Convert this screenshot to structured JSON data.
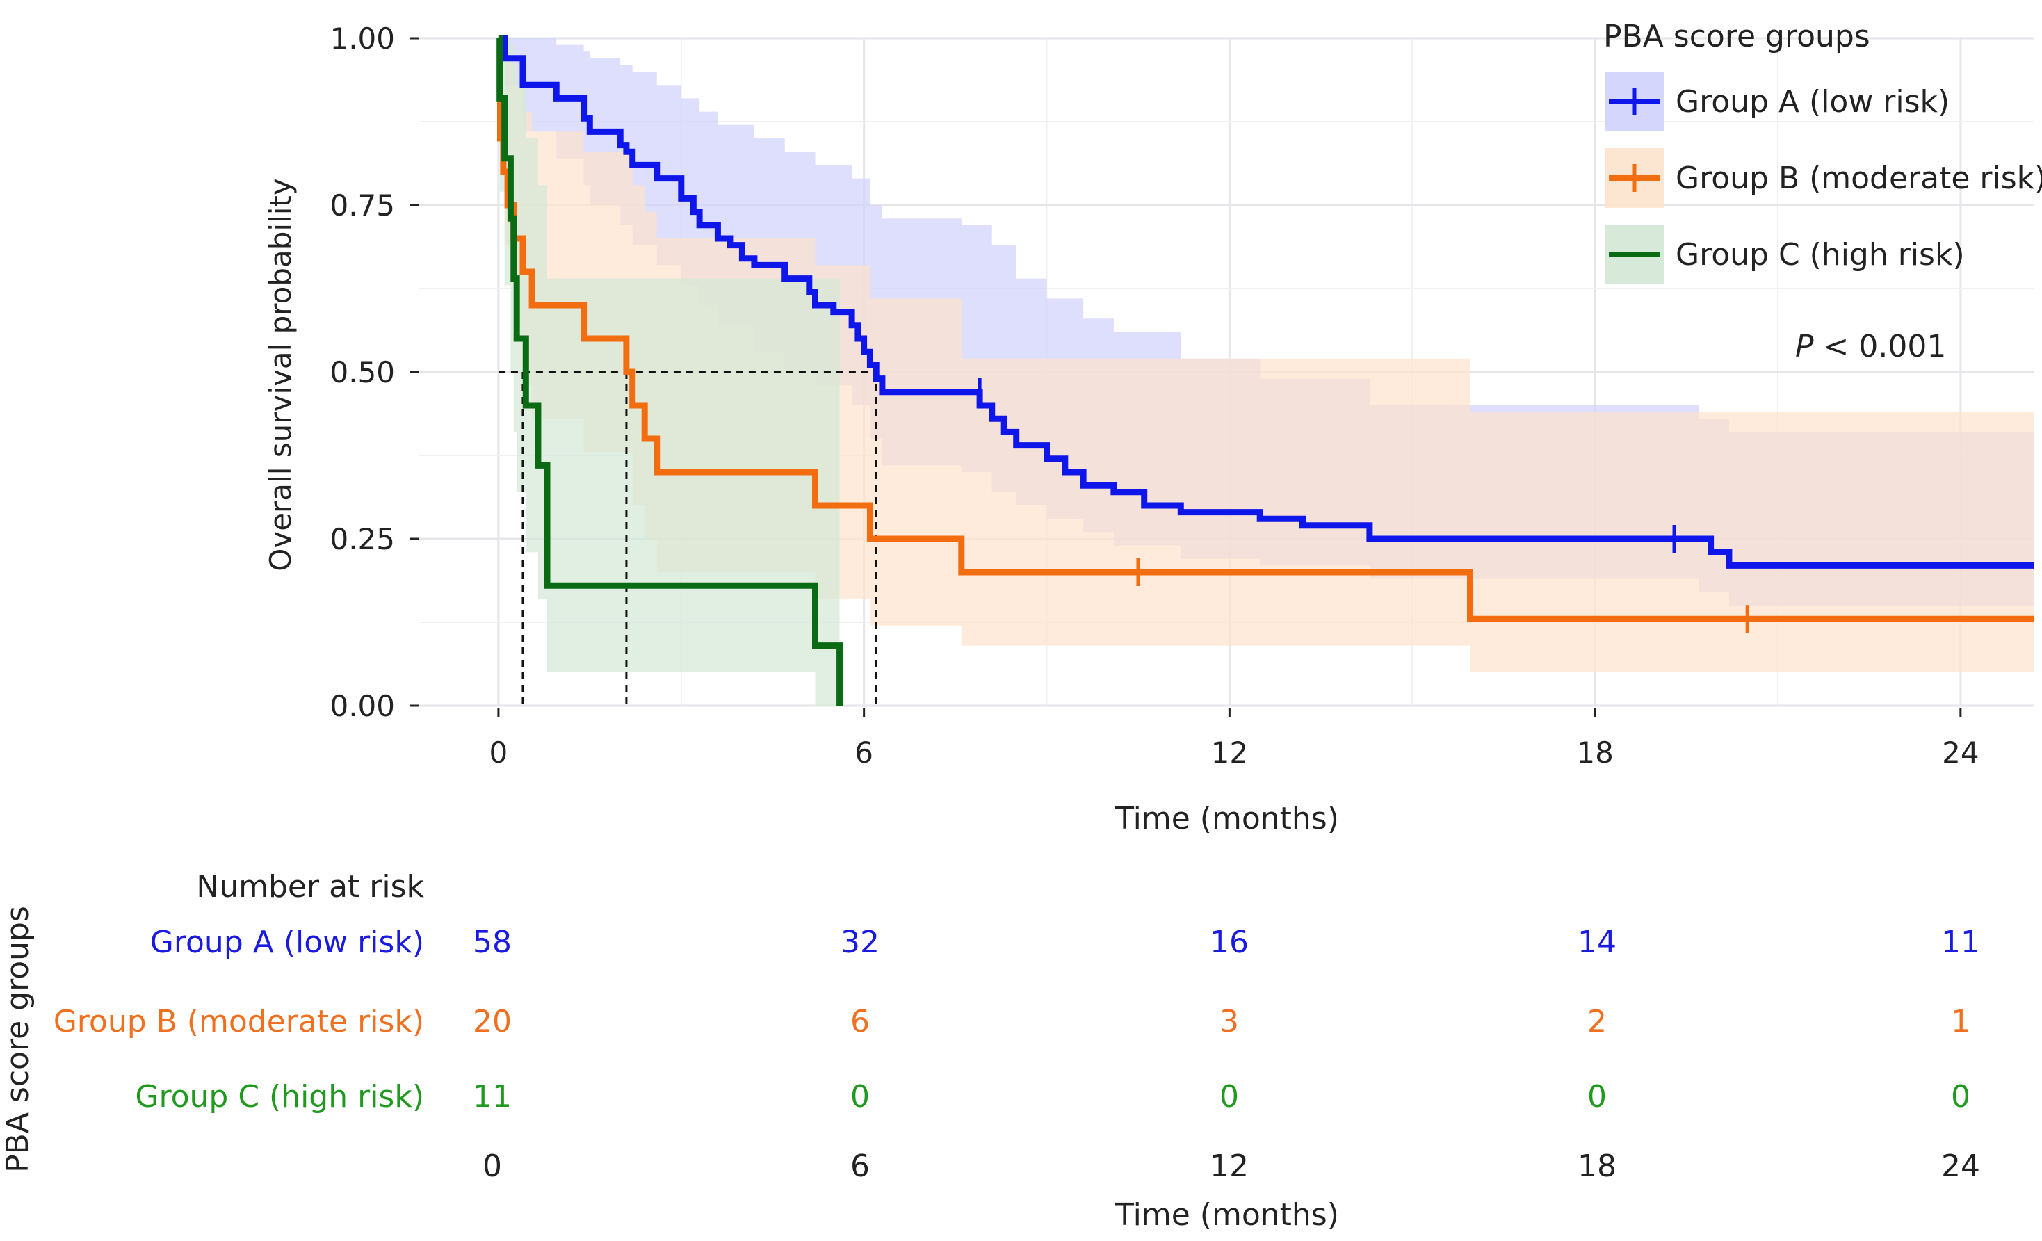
{
  "chart_data": {
    "type": "line",
    "subtype": "kaplan-meier",
    "title": "",
    "xlabel": "Time (months)",
    "ylabel": "Overall survival probability",
    "xlim": [
      -1.3,
      25.2
    ],
    "ylim": [
      0,
      1
    ],
    "xticks": [
      0,
      6,
      12,
      18,
      24
    ],
    "xtick_labels": [
      "0",
      "6",
      "12",
      "18",
      "24"
    ],
    "yticks": [
      0,
      0.25,
      0.5,
      0.75,
      1
    ],
    "ytick_labels": [
      "0.00",
      "0.25",
      "0.50",
      "0.75",
      "1.00"
    ],
    "grid": true,
    "legend": {
      "title": "PBA score groups",
      "position": "top-right",
      "entries": [
        "Group A (low risk)",
        "Group B (moderate risk)",
        "Group C (high risk)"
      ]
    },
    "annotation": {
      "p_italic": "P",
      "p_rest": " < 0.001"
    },
    "median_survival": [
      0.4,
      2.1,
      6.2
    ],
    "series": [
      {
        "name": "Group A (low risk)",
        "color": "#0f16ea",
        "band_color": "#cfd2fb",
        "steps": [
          [
            0,
            1.0
          ],
          [
            0.1,
            0.97
          ],
          [
            0.4,
            0.93
          ],
          [
            0.95,
            0.91
          ],
          [
            1.4,
            0.88
          ],
          [
            1.5,
            0.86
          ],
          [
            2.0,
            0.84
          ],
          [
            2.1,
            0.83
          ],
          [
            2.2,
            0.81
          ],
          [
            2.6,
            0.79
          ],
          [
            3.0,
            0.76
          ],
          [
            3.2,
            0.74
          ],
          [
            3.3,
            0.72
          ],
          [
            3.6,
            0.7
          ],
          [
            3.8,
            0.69
          ],
          [
            4.0,
            0.67
          ],
          [
            4.2,
            0.66
          ],
          [
            4.7,
            0.64
          ],
          [
            5.1,
            0.62
          ],
          [
            5.2,
            0.6
          ],
          [
            5.5,
            0.59
          ],
          [
            5.8,
            0.57
          ],
          [
            5.9,
            0.55
          ],
          [
            6.0,
            0.53
          ],
          [
            6.1,
            0.51
          ],
          [
            6.2,
            0.49
          ],
          [
            6.3,
            0.47
          ],
          [
            7.6,
            0.47
          ],
          [
            7.9,
            0.45
          ],
          [
            8.1,
            0.43
          ],
          [
            8.3,
            0.41
          ],
          [
            8.5,
            0.39
          ],
          [
            9.0,
            0.37
          ],
          [
            9.3,
            0.35
          ],
          [
            9.6,
            0.33
          ],
          [
            10.1,
            0.32
          ],
          [
            10.6,
            0.3
          ],
          [
            11.2,
            0.29
          ],
          [
            12.5,
            0.28
          ],
          [
            13.2,
            0.27
          ],
          [
            14.3,
            0.25
          ],
          [
            19.7,
            0.25
          ],
          [
            19.9,
            0.23
          ],
          [
            20.2,
            0.22
          ],
          [
            20.2,
            0.21
          ],
          [
            25.2,
            0.21
          ]
        ],
        "band_upper": [
          [
            0,
            1.0
          ],
          [
            0.1,
            1.0
          ],
          [
            0.4,
            1.0
          ],
          [
            0.95,
            0.99
          ],
          [
            1.4,
            0.98
          ],
          [
            1.5,
            0.97
          ],
          [
            2.0,
            0.96
          ],
          [
            2.2,
            0.95
          ],
          [
            2.6,
            0.93
          ],
          [
            3.0,
            0.91
          ],
          [
            3.3,
            0.89
          ],
          [
            3.6,
            0.87
          ],
          [
            4.2,
            0.85
          ],
          [
            4.7,
            0.83
          ],
          [
            5.2,
            0.81
          ],
          [
            5.8,
            0.79
          ],
          [
            6.1,
            0.75
          ],
          [
            6.3,
            0.73
          ],
          [
            7.6,
            0.72
          ],
          [
            8.1,
            0.69
          ],
          [
            8.5,
            0.64
          ],
          [
            9.0,
            0.61
          ],
          [
            9.6,
            0.58
          ],
          [
            10.1,
            0.56
          ],
          [
            11.2,
            0.52
          ],
          [
            12.5,
            0.49
          ],
          [
            14.3,
            0.45
          ],
          [
            19.7,
            0.43
          ],
          [
            20.2,
            0.41
          ],
          [
            25.2,
            0.41
          ]
        ],
        "band_lower": [
          [
            0,
            1.0
          ],
          [
            0.1,
            0.93
          ],
          [
            0.4,
            0.86
          ],
          [
            0.95,
            0.82
          ],
          [
            1.4,
            0.78
          ],
          [
            1.5,
            0.75
          ],
          [
            2.0,
            0.72
          ],
          [
            2.2,
            0.69
          ],
          [
            2.6,
            0.66
          ],
          [
            3.0,
            0.63
          ],
          [
            3.3,
            0.6
          ],
          [
            3.6,
            0.57
          ],
          [
            4.2,
            0.53
          ],
          [
            4.7,
            0.5
          ],
          [
            5.2,
            0.48
          ],
          [
            5.8,
            0.45
          ],
          [
            6.1,
            0.4
          ],
          [
            6.3,
            0.36
          ],
          [
            7.6,
            0.35
          ],
          [
            8.1,
            0.32
          ],
          [
            8.5,
            0.3
          ],
          [
            9.0,
            0.28
          ],
          [
            9.6,
            0.26
          ],
          [
            10.1,
            0.24
          ],
          [
            11.2,
            0.22
          ],
          [
            12.5,
            0.21
          ],
          [
            14.3,
            0.19
          ],
          [
            19.7,
            0.17
          ],
          [
            20.2,
            0.15
          ],
          [
            25.2,
            0.15
          ]
        ],
        "censor": [
          [
            7.9,
            0.47
          ],
          [
            19.3,
            0.25
          ]
        ]
      },
      {
        "name": "Group B (moderate risk)",
        "color": "#f26d10",
        "band_color": "#fde3cc",
        "steps": [
          [
            0,
            1.0
          ],
          [
            0.03,
            0.85
          ],
          [
            0.08,
            0.8
          ],
          [
            0.15,
            0.75
          ],
          [
            0.25,
            0.7
          ],
          [
            0.4,
            0.65
          ],
          [
            0.55,
            0.6
          ],
          [
            1.3,
            0.6
          ],
          [
            1.4,
            0.55
          ],
          [
            2.05,
            0.55
          ],
          [
            2.1,
            0.5
          ],
          [
            2.2,
            0.45
          ],
          [
            2.4,
            0.4
          ],
          [
            2.6,
            0.35
          ],
          [
            5.1,
            0.35
          ],
          [
            5.2,
            0.3
          ],
          [
            6.0,
            0.3
          ],
          [
            6.1,
            0.25
          ],
          [
            7.5,
            0.25
          ],
          [
            7.6,
            0.2
          ],
          [
            15.9,
            0.2
          ],
          [
            15.95,
            0.13
          ],
          [
            25.2,
            0.13
          ]
        ],
        "band_upper": [
          [
            0,
            1.0
          ],
          [
            0.1,
            0.97
          ],
          [
            0.25,
            0.93
          ],
          [
            0.4,
            0.89
          ],
          [
            0.55,
            0.86
          ],
          [
            1.3,
            0.86
          ],
          [
            1.4,
            0.83
          ],
          [
            2.05,
            0.83
          ],
          [
            2.2,
            0.78
          ],
          [
            2.4,
            0.74
          ],
          [
            2.6,
            0.7
          ],
          [
            5.1,
            0.7
          ],
          [
            5.2,
            0.66
          ],
          [
            6.0,
            0.66
          ],
          [
            6.1,
            0.61
          ],
          [
            7.5,
            0.61
          ],
          [
            7.6,
            0.52
          ],
          [
            15.9,
            0.52
          ],
          [
            15.95,
            0.44
          ],
          [
            25.2,
            0.44
          ]
        ],
        "band_lower": [
          [
            0,
            1.0
          ],
          [
            0.1,
            0.69
          ],
          [
            0.25,
            0.55
          ],
          [
            0.4,
            0.48
          ],
          [
            0.55,
            0.43
          ],
          [
            1.3,
            0.43
          ],
          [
            1.4,
            0.38
          ],
          [
            2.05,
            0.38
          ],
          [
            2.2,
            0.3
          ],
          [
            2.4,
            0.25
          ],
          [
            2.6,
            0.2
          ],
          [
            5.1,
            0.2
          ],
          [
            5.2,
            0.16
          ],
          [
            6.0,
            0.16
          ],
          [
            6.1,
            0.12
          ],
          [
            7.5,
            0.12
          ],
          [
            7.6,
            0.09
          ],
          [
            15.9,
            0.09
          ],
          [
            15.95,
            0.05
          ],
          [
            25.2,
            0.05
          ]
        ],
        "censor": [
          [
            10.5,
            0.2
          ],
          [
            20.5,
            0.13
          ]
        ]
      },
      {
        "name": "Group C (high risk)",
        "color": "#0a6b14",
        "band_color": "#d3e8d5",
        "steps": [
          [
            0,
            1.0
          ],
          [
            0.02,
            0.91
          ],
          [
            0.1,
            0.82
          ],
          [
            0.2,
            0.73
          ],
          [
            0.25,
            0.64
          ],
          [
            0.3,
            0.55
          ],
          [
            0.4,
            0.55
          ],
          [
            0.45,
            0.45
          ],
          [
            0.6,
            0.45
          ],
          [
            0.65,
            0.36
          ],
          [
            0.75,
            0.36
          ],
          [
            0.8,
            0.18
          ],
          [
            5.1,
            0.18
          ],
          [
            5.2,
            0.09
          ],
          [
            5.6,
            0.09
          ],
          [
            5.6,
            0.0
          ]
        ],
        "band_upper": [
          [
            0,
            1.0
          ],
          [
            0.02,
            1.0
          ],
          [
            0.1,
            1.0
          ],
          [
            0.2,
            0.99
          ],
          [
            0.25,
            0.96
          ],
          [
            0.3,
            0.93
          ],
          [
            0.45,
            0.85
          ],
          [
            0.65,
            0.78
          ],
          [
            0.8,
            0.64
          ],
          [
            5.1,
            0.64
          ],
          [
            5.6,
            0.64
          ]
        ],
        "band_lower": [
          [
            0,
            1.0
          ],
          [
            0.02,
            0.77
          ],
          [
            0.1,
            0.63
          ],
          [
            0.2,
            0.5
          ],
          [
            0.25,
            0.41
          ],
          [
            0.3,
            0.32
          ],
          [
            0.45,
            0.23
          ],
          [
            0.65,
            0.16
          ],
          [
            0.8,
            0.05
          ],
          [
            5.1,
            0.05
          ],
          [
            5.2,
            0.0
          ],
          [
            5.6,
            0.0
          ]
        ],
        "censor": []
      }
    ],
    "risk_table": {
      "title": "Number at risk",
      "ylabel": "PBA score groups",
      "xlabel": "Time (months)",
      "times": [
        "0",
        "6",
        "12",
        "18",
        "24"
      ],
      "rows": [
        {
          "label": "Group A (low risk)",
          "color": "#1a1ae0",
          "values": [
            "58",
            "32",
            "16",
            "14",
            "11"
          ]
        },
        {
          "label": "Group B (moderate risk)",
          "color": "#f07020",
          "values": [
            "20",
            "6",
            "3",
            "2",
            "1"
          ]
        },
        {
          "label": "Group C (high risk)",
          "color": "#1f9a1f",
          "values": [
            "11",
            "0",
            "0",
            "0",
            "0"
          ]
        }
      ]
    }
  }
}
